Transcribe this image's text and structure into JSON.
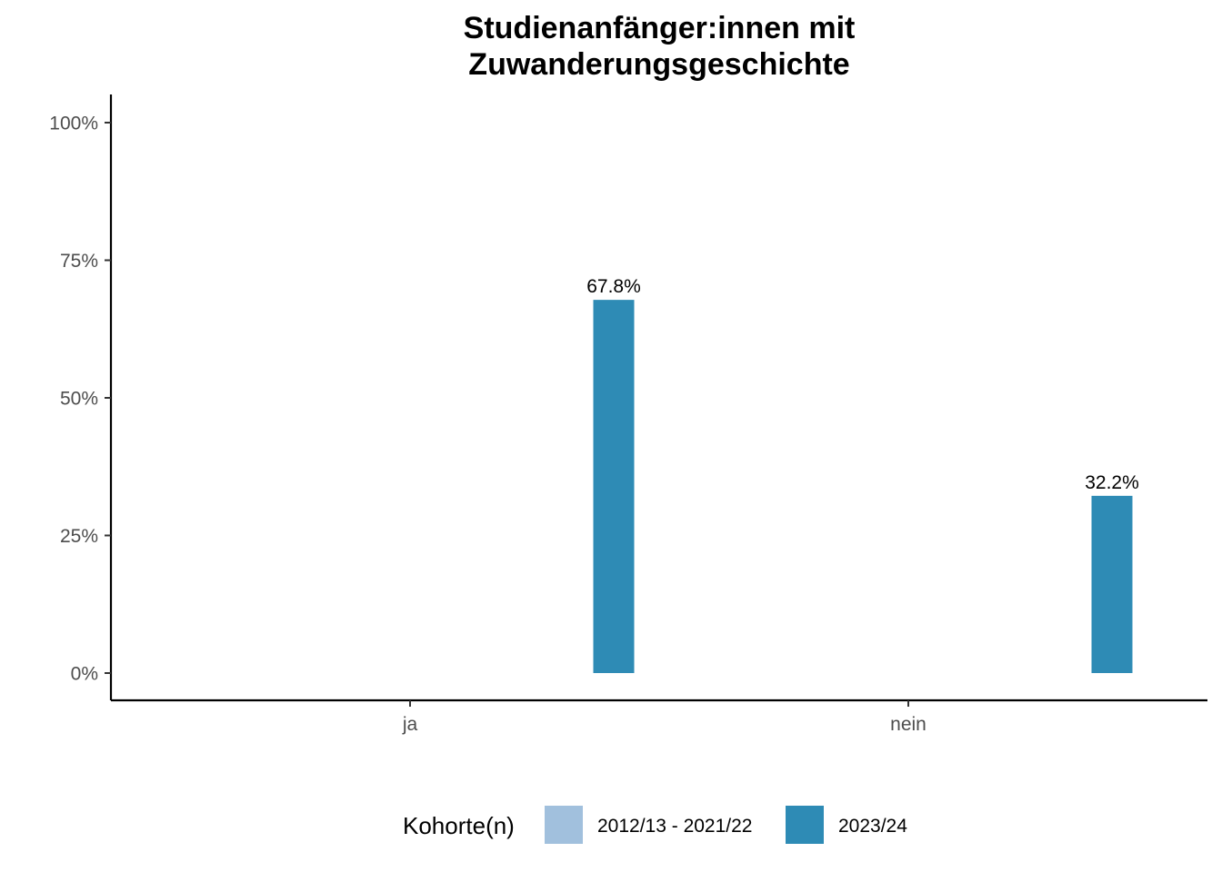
{
  "chart_data": {
    "type": "bar",
    "title_lines": [
      "Studienanfänger:innen mit",
      "Zuwanderungsgeschichte"
    ],
    "xlabel": "",
    "ylabel": "",
    "categories": [
      "ja",
      "nein"
    ],
    "series": [
      {
        "name": "2012/13 - 2021/22",
        "color": "#a1c0dd",
        "values": [
          null,
          null
        ],
        "labels": [
          "",
          ""
        ]
      },
      {
        "name": "2023/24",
        "color": "#2e8bb5",
        "values": [
          67.8,
          32.2
        ],
        "labels": [
          "67.8%",
          "32.2%"
        ]
      }
    ],
    "ylim": [
      0,
      100
    ],
    "yticks": [
      0,
      25,
      50,
      75,
      100
    ],
    "ytick_labels": [
      "0%",
      "25%",
      "50%",
      "75%",
      "100%"
    ],
    "grid": false,
    "legend": {
      "title": "Kohorte(n)",
      "position": "bottom"
    }
  }
}
